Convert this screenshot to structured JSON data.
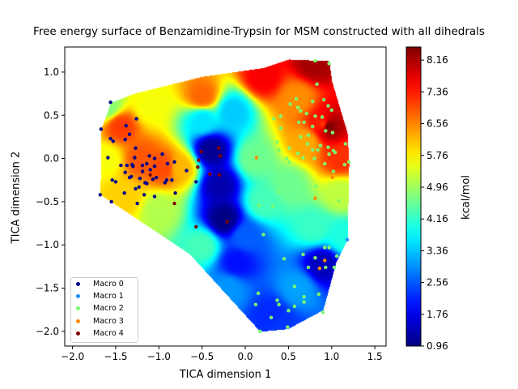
{
  "chart_data": {
    "type": "scatter",
    "title": "Free energy surface of Benzamidine-Trypsin for MSM constructed with all dihedrals",
    "xlabel": "TICA dimension 1",
    "ylabel": "TICA dimension 2",
    "xlim": [
      -2.09,
      1.63
    ],
    "ylim": [
      -2.17,
      1.29
    ],
    "xticks": [
      "−2.0",
      "−1.5",
      "−1.0",
      "−0.5",
      "0.0",
      "0.5",
      "1.0",
      "1.5"
    ],
    "xtick_values": [
      -2.0,
      -1.5,
      -1.0,
      -0.5,
      0.0,
      0.5,
      1.0,
      1.5
    ],
    "yticks": [
      "−2.0",
      "−1.5",
      "−1.0",
      "−0.5",
      "0.0",
      "0.5",
      "1.0"
    ],
    "ytick_values": [
      -2.0,
      -1.5,
      -1.0,
      -0.5,
      0.0,
      0.5,
      1.0
    ],
    "grid": false,
    "legend_placement": "lower-left",
    "background": "interpolated free energy surface (jet colormap)",
    "colorbar": {
      "label": "kcal/mol",
      "colormap": "jet",
      "range": [
        0.96,
        8.49
      ],
      "ticks": [
        "0.96",
        "1.76",
        "2.56",
        "3.36",
        "4.16",
        "4.96",
        "5.76",
        "6.56",
        "7.36",
        "8.16"
      ],
      "tick_values": [
        0.96,
        1.76,
        2.56,
        3.36,
        4.16,
        4.96,
        5.76,
        6.56,
        7.36,
        8.16
      ]
    },
    "series": [
      {
        "name": "Macro 0",
        "color": "#00008b",
        "points": [
          [
            -1.56,
            0.65
          ],
          [
            -1.67,
            0.34
          ],
          [
            -1.26,
            0.46
          ],
          [
            -1.38,
            0.38
          ],
          [
            -1.34,
            0.28
          ],
          [
            -1.56,
            0.23
          ],
          [
            -1.53,
            0.2
          ],
          [
            -1.39,
            0.22
          ],
          [
            -1.27,
            0.12
          ],
          [
            -1.59,
            0.01
          ],
          [
            -1.28,
            0.01
          ],
          [
            -1.11,
            0.03
          ],
          [
            -1.05,
            0.0
          ],
          [
            -0.96,
            0.05
          ],
          [
            -1.44,
            -0.08
          ],
          [
            -1.37,
            -0.08
          ],
          [
            -1.31,
            -0.07
          ],
          [
            -1.3,
            -0.09
          ],
          [
            -1.19,
            -0.08
          ],
          [
            -1.14,
            -0.06
          ],
          [
            -1.05,
            -0.09
          ],
          [
            -0.9,
            -0.06
          ],
          [
            -0.82,
            -0.04
          ],
          [
            -1.39,
            -0.16
          ],
          [
            -1.19,
            -0.15
          ],
          [
            -1.1,
            -0.13
          ],
          [
            -1.34,
            -0.22
          ],
          [
            -1.32,
            -0.21
          ],
          [
            -1.22,
            -0.23
          ],
          [
            -1.16,
            -0.28
          ],
          [
            -1.14,
            -0.29
          ],
          [
            -1.07,
            -0.24
          ],
          [
            -1.03,
            -0.22
          ],
          [
            -1.54,
            -0.25
          ],
          [
            -1.5,
            -0.27
          ],
          [
            -0.93,
            -0.28
          ],
          [
            -0.91,
            -0.25
          ],
          [
            -0.85,
            -0.25
          ],
          [
            -0.68,
            -0.14
          ],
          [
            -0.57,
            -0.27
          ],
          [
            -1.4,
            -0.4
          ],
          [
            -1.27,
            -0.35
          ],
          [
            -1.23,
            -0.33
          ],
          [
            -1.17,
            -0.42
          ],
          [
            -1.05,
            -0.44
          ],
          [
            -0.81,
            -0.4
          ],
          [
            -1.68,
            -0.42
          ],
          [
            -1.55,
            -0.5
          ],
          [
            -1.25,
            -0.52
          ]
        ]
      },
      {
        "name": "Macro 1",
        "color": "#1e90ff",
        "points": [
          [
            1.18,
            -0.94
          ]
        ]
      },
      {
        "name": "Macro 2",
        "color": "#7cfc6e",
        "points": [
          [
            0.81,
            1.13
          ],
          [
            0.97,
            1.1
          ],
          [
            0.83,
            0.86
          ],
          [
            0.59,
            0.69
          ],
          [
            0.78,
            0.66
          ],
          [
            0.91,
            0.68
          ],
          [
            0.52,
            0.63
          ],
          [
            0.61,
            0.59
          ],
          [
            0.96,
            0.61
          ],
          [
            1.0,
            0.56
          ],
          [
            0.71,
            0.52
          ],
          [
            0.64,
            0.55
          ],
          [
            0.33,
            0.46
          ],
          [
            0.41,
            0.49
          ],
          [
            0.81,
            0.49
          ],
          [
            0.89,
            0.48
          ],
          [
            0.62,
            0.42
          ],
          [
            0.68,
            0.42
          ],
          [
            0.78,
            0.37
          ],
          [
            0.93,
            0.32
          ],
          [
            1.01,
            0.3
          ],
          [
            0.41,
            0.35
          ],
          [
            0.73,
            0.27
          ],
          [
            0.64,
            0.25
          ],
          [
            0.23,
            0.19
          ],
          [
            0.37,
            0.19
          ],
          [
            0.72,
            0.17
          ],
          [
            1.16,
            0.17
          ],
          [
            0.39,
            0.1
          ],
          [
            0.51,
            0.12
          ],
          [
            0.78,
            0.1
          ],
          [
            0.84,
            0.1
          ],
          [
            0.87,
            0.15
          ],
          [
            0.96,
            0.13
          ],
          [
            1.02,
            0.09
          ],
          [
            1.04,
            0.07
          ],
          [
            0.97,
            0.05
          ],
          [
            0.61,
            0.06
          ],
          [
            0.48,
            0.0
          ],
          [
            0.67,
            0.01
          ],
          [
            0.8,
            0.0
          ],
          [
            0.51,
            -0.04
          ],
          [
            1.15,
            -0.07
          ],
          [
            1.2,
            -0.04
          ],
          [
            0.92,
            -0.06
          ],
          [
            1.02,
            -0.15
          ],
          [
            0.65,
            -0.23
          ],
          [
            0.82,
            -0.32
          ],
          [
            0.39,
            -0.39
          ],
          [
            1.08,
            -0.49
          ],
          [
            0.16,
            -0.54
          ],
          [
            0.32,
            -0.55
          ],
          [
            0.21,
            -0.88
          ],
          [
            0.92,
            -1.03
          ],
          [
            0.97,
            -1.03
          ],
          [
            0.67,
            -1.11
          ],
          [
            1.06,
            -1.13
          ],
          [
            0.81,
            -1.15
          ],
          [
            0.45,
            -1.16
          ],
          [
            0.73,
            -1.26
          ],
          [
            0.93,
            -1.26
          ],
          [
            1.03,
            -1.26
          ],
          [
            0.57,
            -1.48
          ],
          [
            0.85,
            -1.57
          ],
          [
            0.15,
            -1.56
          ],
          [
            0.68,
            -1.6
          ],
          [
            0.68,
            -1.66
          ],
          [
            0.37,
            -1.64
          ],
          [
            0.39,
            -1.69
          ],
          [
            0.57,
            -1.71
          ],
          [
            0.12,
            -1.69
          ],
          [
            0.5,
            -1.76
          ],
          [
            0.9,
            -1.78
          ],
          [
            0.3,
            -1.84
          ],
          [
            0.17,
            -2.0
          ],
          [
            0.49,
            -1.95
          ]
        ]
      },
      {
        "name": "Macro 3",
        "color": "#ff8c00",
        "points": [
          [
            0.13,
            0.01
          ],
          [
            1.01,
            -0.22
          ],
          [
            0.81,
            -0.46
          ],
          [
            0.92,
            -1.18
          ],
          [
            0.86,
            -1.27
          ]
        ]
      },
      {
        "name": "Macro 4",
        "color": "#800000",
        "points": [
          [
            -0.51,
            0.08
          ],
          [
            -0.31,
            0.12
          ],
          [
            -0.29,
            0.03
          ],
          [
            -0.54,
            -0.02
          ],
          [
            -0.55,
            -0.1
          ],
          [
            -0.41,
            -0.18
          ],
          [
            -0.3,
            -0.19
          ],
          [
            -1.1,
            -0.19
          ],
          [
            -0.82,
            -0.52
          ],
          [
            -0.57,
            -0.79
          ],
          [
            -0.21,
            -0.73
          ]
        ]
      }
    ]
  }
}
